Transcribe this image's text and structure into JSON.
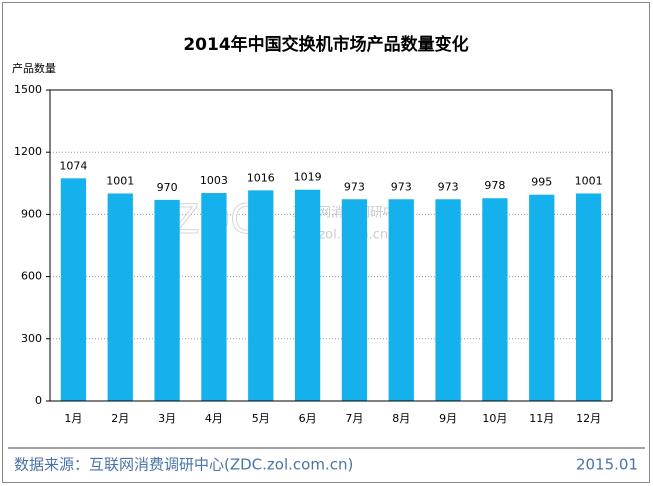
{
  "chart_data": {
    "type": "bar",
    "title": "2014年中国交换机市场产品数量变化",
    "y_label": "产品数量",
    "categories": [
      "1月",
      "2月",
      "3月",
      "4月",
      "5月",
      "6月",
      "7月",
      "8月",
      "9月",
      "10月",
      "11月",
      "12月"
    ],
    "values": [
      1074,
      1001,
      970,
      1003,
      1016,
      1019,
      973,
      973,
      973,
      978,
      995,
      1001
    ],
    "color": "#14b1ec",
    "ylim": [
      0,
      1500
    ],
    "yticks": [
      0,
      300,
      600,
      900,
      1200,
      1500
    ],
    "grid": true,
    "watermark": [
      "ZDC",
      "互联网消费调研中心",
      "zdc.zol.com.cn"
    ],
    "source": "数据来源：互联网消费调研中心(ZDC.zol.com.cn)",
    "date": "2015.01"
  }
}
